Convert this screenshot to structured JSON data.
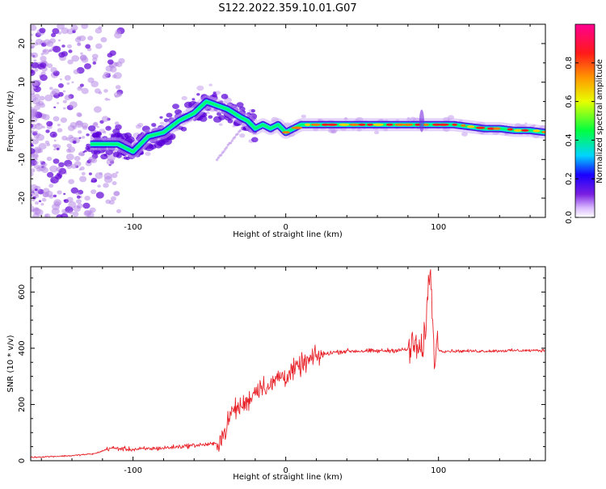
{
  "figure_title": "S122.2022.359.10.01.G07",
  "colors": {
    "snr_line": "#e8232a",
    "ridge_core": "#ff3030",
    "ridge_mid": "#00e8e0",
    "ridge_outer": "#3000e0",
    "scatter": "#b88ae8",
    "background": "#ffffff",
    "axis": "#000000"
  },
  "chart_data": [
    {
      "id": "spectrogram",
      "type": "heatmap",
      "xlabel": "Height of straight line (km)",
      "ylabel": "Frequency (Hz)",
      "xlim": [
        -167,
        170
      ],
      "ylim": [
        -25,
        25
      ],
      "xticks": [
        -100,
        0,
        100
      ],
      "yticks": [
        -20,
        -10,
        0,
        10,
        20
      ],
      "grid": false,
      "colorbar": {
        "label": "Normalized spectral amplitude",
        "range": [
          0,
          1
        ],
        "ticks": [
          "0.0",
          "0.2",
          "0.4",
          "0.6",
          "0.8"
        ],
        "colormap": "rainbow (white → purple → blue → cyan → green → yellow → orange → red → magenta)"
      },
      "ridge": {
        "x": [
          -125,
          -110,
          -100,
          -90,
          -80,
          -70,
          -60,
          -52,
          -45,
          -38,
          -30,
          -25,
          -20,
          -15,
          -10,
          -5,
          0,
          5,
          10,
          20,
          40,
          60,
          80,
          85,
          90,
          100,
          110,
          120,
          130,
          140,
          150,
          160,
          170
        ],
        "y": [
          -6,
          -6,
          -8,
          -4,
          -3,
          0,
          2,
          5,
          4,
          3,
          1,
          0,
          -2,
          -1,
          -2,
          -1,
          -3,
          -2,
          -1,
          -1,
          -1,
          -1,
          -1,
          -1,
          -1,
          -1,
          -1,
          -1.5,
          -2,
          -2,
          -2.5,
          -2.5,
          -3
        ]
      }
    },
    {
      "id": "snr",
      "type": "line",
      "xlabel": "Height of straight line (km)",
      "ylabel": "SNR (10 * v/v)",
      "xlim": [
        -167,
        170
      ],
      "ylim": [
        0,
        690
      ],
      "xticks": [
        -100,
        0,
        100
      ],
      "yticks": [
        0,
        200,
        400,
        600
      ],
      "grid": false,
      "series": [
        {
          "x": [
            -167,
            -140,
            -125,
            -115,
            -100,
            -80,
            -60,
            -45,
            -40,
            -35,
            -30,
            -25,
            -20,
            -15,
            -10,
            -5,
            0,
            10,
            20,
            30,
            40,
            60,
            80,
            85,
            90,
            93,
            95,
            97,
            99,
            100,
            103,
            110,
            130,
            150,
            170
          ],
          "y": [
            12,
            18,
            25,
            45,
            40,
            45,
            55,
            60,
            100,
            180,
            190,
            210,
            250,
            270,
            260,
            300,
            300,
            340,
            370,
            385,
            390,
            390,
            395,
            410,
            380,
            590,
            680,
            370,
            420,
            395,
            390,
            390,
            390,
            392,
            392
          ]
        }
      ]
    }
  ]
}
